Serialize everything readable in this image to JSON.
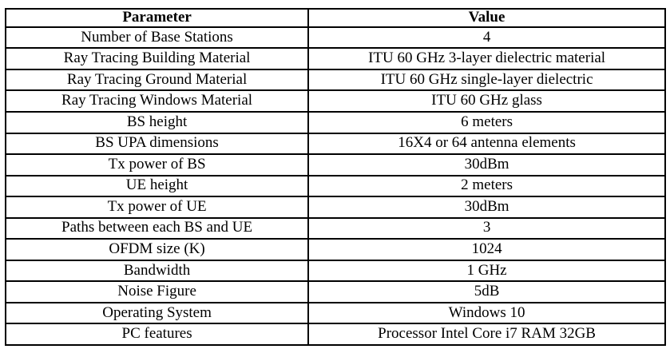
{
  "table": {
    "headers": [
      "Parameter",
      "Value"
    ],
    "rows": [
      [
        "Number of Base Stations",
        "4"
      ],
      [
        "Ray Tracing Building Material",
        "ITU 60 GHz 3-layer dielectric material"
      ],
      [
        "Ray Tracing Ground Material",
        "ITU 60 GHz single-layer dielectric"
      ],
      [
        "Ray Tracing Windows Material",
        "ITU 60 GHz glass"
      ],
      [
        "BS height",
        "6 meters"
      ],
      [
        "BS UPA dimensions",
        "16X4 or 64 antenna elements"
      ],
      [
        "Tx power of BS",
        "30dBm"
      ],
      [
        "UE height",
        "2 meters"
      ],
      [
        "Tx power of UE",
        "30dBm"
      ],
      [
        "Paths between each BS and UE",
        "3"
      ],
      [
        "OFDM size (K)",
        "1024"
      ],
      [
        "Bandwidth",
        "1 GHz"
      ],
      [
        "Noise Figure",
        "5dB"
      ],
      [
        "Operating System",
        "Windows 10"
      ],
      [
        "PC features",
        "Processor Intel Core i7 RAM 32GB"
      ]
    ],
    "colors": {
      "border": "#000000",
      "text": "#000000",
      "background": "#ffffff"
    }
  }
}
